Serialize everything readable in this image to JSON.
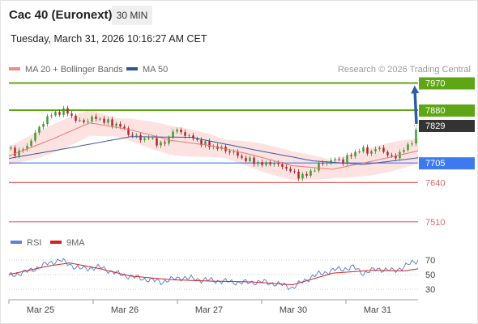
{
  "header": {
    "title": "Cac 40 (Euronext)",
    "timeframe": "30 MIN",
    "timestamp": "Tuesday, March 31, 2026 10:16:27 AM CET"
  },
  "legend": {
    "items": [
      {
        "label": "MA 20 + Bollinger Bands",
        "color": "#f08a8a"
      },
      {
        "label": "MA 50",
        "color": "#2f5597"
      }
    ],
    "credit": "Research © 2026 Trading Central"
  },
  "colors": {
    "resistance": "#5ea614",
    "support_strong": "#3d7af0",
    "support": "#e06666",
    "current": "#333333",
    "arrow": "#2e5d9f",
    "band": "#fde2e2",
    "candle_up": "#3a9a2a",
    "candle_down": "#b0202a",
    "rsi": "#5b83d6",
    "rsi_ma": "#d62020"
  },
  "chart_data": [
    {
      "type": "candlestick",
      "title": "",
      "y_range": [
        7480,
        7990
      ],
      "x_sessions": [
        "Mar 25",
        "Mar 26",
        "Mar 27",
        "Mar 30",
        "Mar 31"
      ],
      "levels": [
        {
          "value": 7970,
          "label": "7970",
          "kind": "resistance"
        },
        {
          "value": 7880,
          "label": "7880",
          "kind": "resistance"
        },
        {
          "value": 7829,
          "label": "7829",
          "kind": "current"
        },
        {
          "value": 7705,
          "label": "7705",
          "kind": "support_strong"
        },
        {
          "value": 7640,
          "label": "7640",
          "kind": "support"
        },
        {
          "value": 7510,
          "label": "7510",
          "kind": "support"
        }
      ],
      "close_path": [
        [
          0,
          7752
        ],
        [
          3,
          7738
        ],
        [
          6,
          7745
        ],
        [
          9,
          7760
        ],
        [
          12,
          7795
        ],
        [
          15,
          7820
        ],
        [
          18,
          7852
        ],
        [
          21,
          7864
        ],
        [
          24,
          7872
        ],
        [
          27,
          7878
        ],
        [
          30,
          7868
        ],
        [
          33,
          7848
        ],
        [
          36,
          7838
        ],
        [
          39,
          7848
        ],
        [
          42,
          7855
        ],
        [
          45,
          7850
        ],
        [
          48,
          7842
        ],
        [
          51,
          7835
        ],
        [
          54,
          7832
        ],
        [
          57,
          7815
        ],
        [
          60,
          7798
        ],
        [
          63,
          7792
        ],
        [
          66,
          7782
        ],
        [
          69,
          7790
        ],
        [
          72,
          7775
        ],
        [
          75,
          7768
        ],
        [
          78,
          7772
        ],
        [
          81,
          7815
        ],
        [
          84,
          7808
        ],
        [
          87,
          7800
        ],
        [
          90,
          7790
        ],
        [
          93,
          7778
        ],
        [
          96,
          7770
        ],
        [
          99,
          7762
        ],
        [
          102,
          7758
        ],
        [
          105,
          7752
        ],
        [
          108,
          7745
        ],
        [
          111,
          7738
        ],
        [
          114,
          7725
        ],
        [
          117,
          7716
        ],
        [
          120,
          7712
        ],
        [
          123,
          7705
        ],
        [
          126,
          7698
        ],
        [
          129,
          7708
        ],
        [
          132,
          7700
        ],
        [
          135,
          7695
        ],
        [
          138,
          7682
        ],
        [
          141,
          7670
        ],
        [
          144,
          7660
        ],
        [
          147,
          7665
        ],
        [
          150,
          7682
        ],
        [
          153,
          7698
        ],
        [
          156,
          7708
        ],
        [
          159,
          7712
        ],
        [
          162,
          7718
        ],
        [
          165,
          7710
        ],
        [
          168,
          7728
        ],
        [
          171,
          7740
        ],
        [
          174,
          7752
        ],
        [
          177,
          7742
        ],
        [
          180,
          7745
        ],
        [
          183,
          7755
        ],
        [
          186,
          7738
        ],
        [
          189,
          7722
        ],
        [
          192,
          7732
        ],
        [
          195,
          7750
        ],
        [
          198,
          7765
        ],
        [
          200,
          7792
        ],
        [
          202,
          7829
        ]
      ],
      "ma20": [
        [
          0,
          7728
        ],
        [
          20,
          7780
        ],
        [
          40,
          7838
        ],
        [
          60,
          7815
        ],
        [
          80,
          7780
        ],
        [
          100,
          7762
        ],
        [
          120,
          7732
        ],
        [
          140,
          7696
        ],
        [
          160,
          7684
        ],
        [
          180,
          7712
        ],
        [
          202,
          7745
        ]
      ],
      "ma50": [
        [
          0,
          7720
        ],
        [
          30,
          7755
        ],
        [
          60,
          7792
        ],
        [
          90,
          7790
        ],
        [
          120,
          7750
        ],
        [
          150,
          7712
        ],
        [
          175,
          7700
        ],
        [
          202,
          7722
        ]
      ],
      "forecast_arrow": {
        "from": 7829,
        "to": 7965
      }
    },
    {
      "type": "line",
      "title": "",
      "legend": [
        "RSI",
        "9MA"
      ],
      "y_ticks": [
        70,
        50,
        30
      ],
      "y_range": [
        20,
        80
      ],
      "rsi": [
        [
          0,
          48
        ],
        [
          10,
          55
        ],
        [
          20,
          66
        ],
        [
          25,
          70
        ],
        [
          35,
          58
        ],
        [
          45,
          60
        ],
        [
          55,
          50
        ],
        [
          65,
          45
        ],
        [
          75,
          40
        ],
        [
          85,
          46
        ],
        [
          95,
          43
        ],
        [
          105,
          41
        ],
        [
          115,
          39
        ],
        [
          125,
          40
        ],
        [
          135,
          36
        ],
        [
          140,
          32
        ],
        [
          145,
          40
        ],
        [
          150,
          48
        ],
        [
          160,
          56
        ],
        [
          170,
          60
        ],
        [
          175,
          52
        ],
        [
          182,
          58
        ],
        [
          190,
          55
        ],
        [
          196,
          62
        ],
        [
          202,
          70
        ]
      ],
      "ma9": [
        [
          0,
          50
        ],
        [
          20,
          62
        ],
        [
          30,
          66
        ],
        [
          45,
          58
        ],
        [
          60,
          48
        ],
        [
          80,
          43
        ],
        [
          100,
          41
        ],
        [
          120,
          40
        ],
        [
          140,
          36
        ],
        [
          150,
          44
        ],
        [
          160,
          52
        ],
        [
          180,
          56
        ],
        [
          195,
          55
        ],
        [
          202,
          58
        ]
      ]
    }
  ]
}
